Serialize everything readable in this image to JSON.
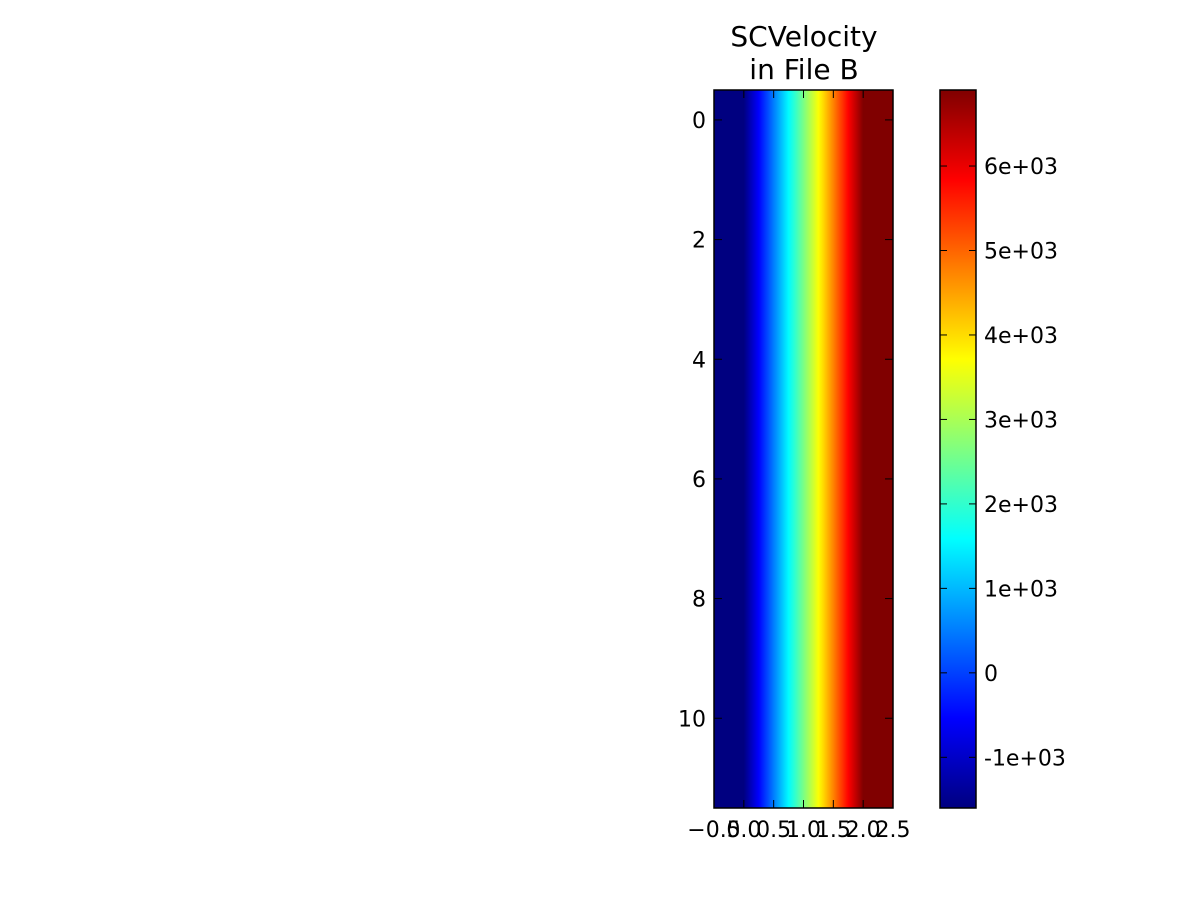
{
  "chart_data": {
    "type": "heatmap",
    "title_lines": [
      "SCVelocity",
      "in File B"
    ],
    "xlabel": "",
    "ylabel": "",
    "colormap": "jet",
    "xlim": [
      -0.5,
      2.5
    ],
    "ylim": [
      11.5,
      -0.5
    ],
    "x_ticks": [
      -0.5,
      0.0,
      0.5,
      1.0,
      1.5,
      2.0,
      2.5
    ],
    "x_tick_labels": [
      "−0.5",
      "0.0",
      "0.5",
      "1.0",
      "1.5",
      "2.0",
      "2.5"
    ],
    "y_ticks": [
      0,
      2,
      4,
      6,
      8,
      10
    ],
    "y_tick_labels": [
      "0",
      "2",
      "4",
      "6",
      "8",
      "10"
    ],
    "interpolation": "bilinear",
    "n_rows": 12,
    "columns": [
      0,
      1,
      2
    ],
    "column_values": [
      -1600,
      2600,
      6900
    ],
    "colorbar": {
      "vmin": -1600,
      "vmax": 6900,
      "ticks": [
        -1000,
        0,
        1000,
        2000,
        3000,
        4000,
        5000,
        6000
      ],
      "tick_labels": [
        "-1e+03",
        "0",
        "1e+03",
        "2e+03",
        "3e+03",
        "4e+03",
        "5e+03",
        "6e+03"
      ]
    }
  }
}
